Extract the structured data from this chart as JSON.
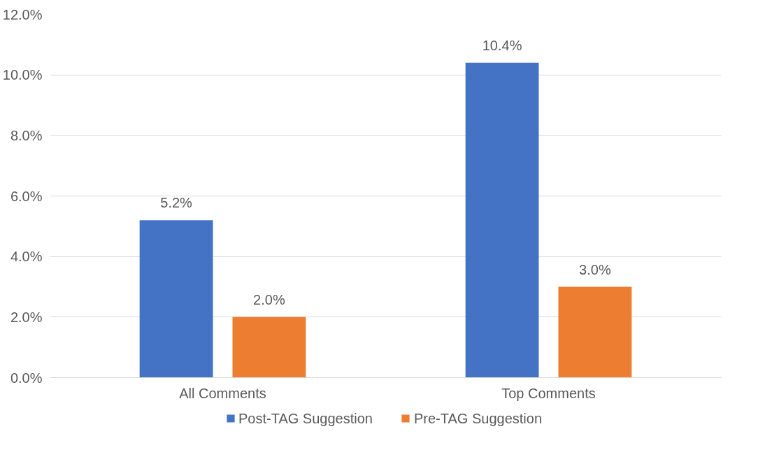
{
  "chart_data": {
    "type": "bar",
    "categories": [
      "All Comments",
      "Top Comments"
    ],
    "series": [
      {
        "name": "Post-TAG Suggestion",
        "color": "#4472c4",
        "values": [
          5.2,
          10.4
        ],
        "value_labels": [
          "5.2%",
          "10.4%"
        ]
      },
      {
        "name": "Pre-TAG Suggestion",
        "color": "#ed7d31",
        "values": [
          2.0,
          3.0
        ],
        "value_labels": [
          "2.0%",
          "3.0%"
        ]
      }
    ],
    "ylim": [
      0,
      12
    ],
    "yticks": [
      {
        "value": 0,
        "label": "0.0%"
      },
      {
        "value": 2,
        "label": "2.0%"
      },
      {
        "value": 4,
        "label": "4.0%"
      },
      {
        "value": 6,
        "label": "6.0%"
      },
      {
        "value": 8,
        "label": "8.0%"
      },
      {
        "value": 10,
        "label": "10.0%"
      },
      {
        "value": 12,
        "label": "12.0%"
      }
    ],
    "grid": "y",
    "legend": "bottom"
  }
}
